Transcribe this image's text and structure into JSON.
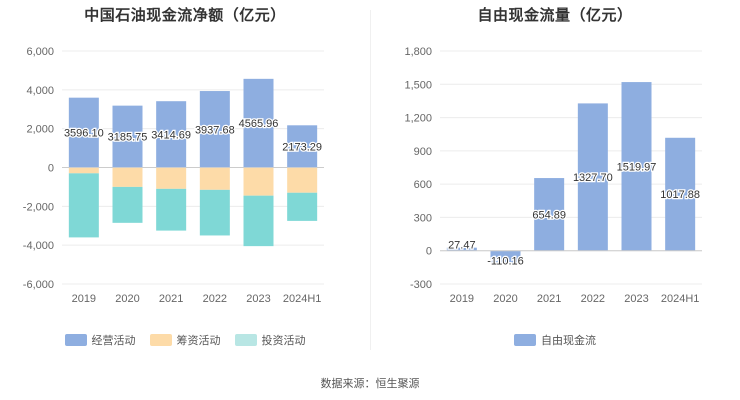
{
  "chart_data": [
    {
      "type": "bar",
      "stacked": true,
      "title": "中国石油现金流净额（亿元）",
      "categories": [
        "2019",
        "2020",
        "2021",
        "2022",
        "2023",
        "2024H1"
      ],
      "series": [
        {
          "name": "经营活动",
          "color": "#8eaee0",
          "values": [
            3596.1,
            3185.75,
            3414.69,
            3937.68,
            4565.96,
            2173.29
          ]
        },
        {
          "name": "筹资活动",
          "color": "#fddba8",
          "values": [
            -300,
            -1000,
            -1100,
            -1150,
            -1450,
            -1300
          ]
        },
        {
          "name": "投资活动",
          "color": "#7fd8d6",
          "values": [
            -3300,
            -1850,
            -2150,
            -2350,
            -2600,
            -1450
          ]
        }
      ],
      "data_labels": [
        "3596.10",
        "3185.75",
        "3414.69",
        "3937.68",
        "4565.96",
        "2173.29"
      ],
      "ylim": [
        -6000,
        6000
      ],
      "yticks": [
        "6,000",
        "4,000",
        "2,000",
        "0",
        "-2,000",
        "-4,000",
        "-6,000"
      ],
      "grid": true,
      "legend_position": "bottom"
    },
    {
      "type": "bar",
      "title": "自由现金流量（亿元）",
      "categories": [
        "2019",
        "2020",
        "2021",
        "2022",
        "2023",
        "2024H1"
      ],
      "series": [
        {
          "name": "自由现金流",
          "color": "#8eaee0",
          "values": [
            27.47,
            -110.16,
            654.89,
            1327.7,
            1519.97,
            1017.88
          ]
        }
      ],
      "data_labels": [
        "27.47",
        "-110.16",
        "654.89",
        "1327.70",
        "1519.97",
        "1017.88"
      ],
      "ylim": [
        -300,
        1800
      ],
      "yticks": [
        "1,800",
        "1,500",
        "1,200",
        "900",
        "600",
        "300",
        "0",
        "-300"
      ],
      "grid": true,
      "legend_position": "bottom"
    }
  ],
  "source": "数据来源：恒生聚源"
}
